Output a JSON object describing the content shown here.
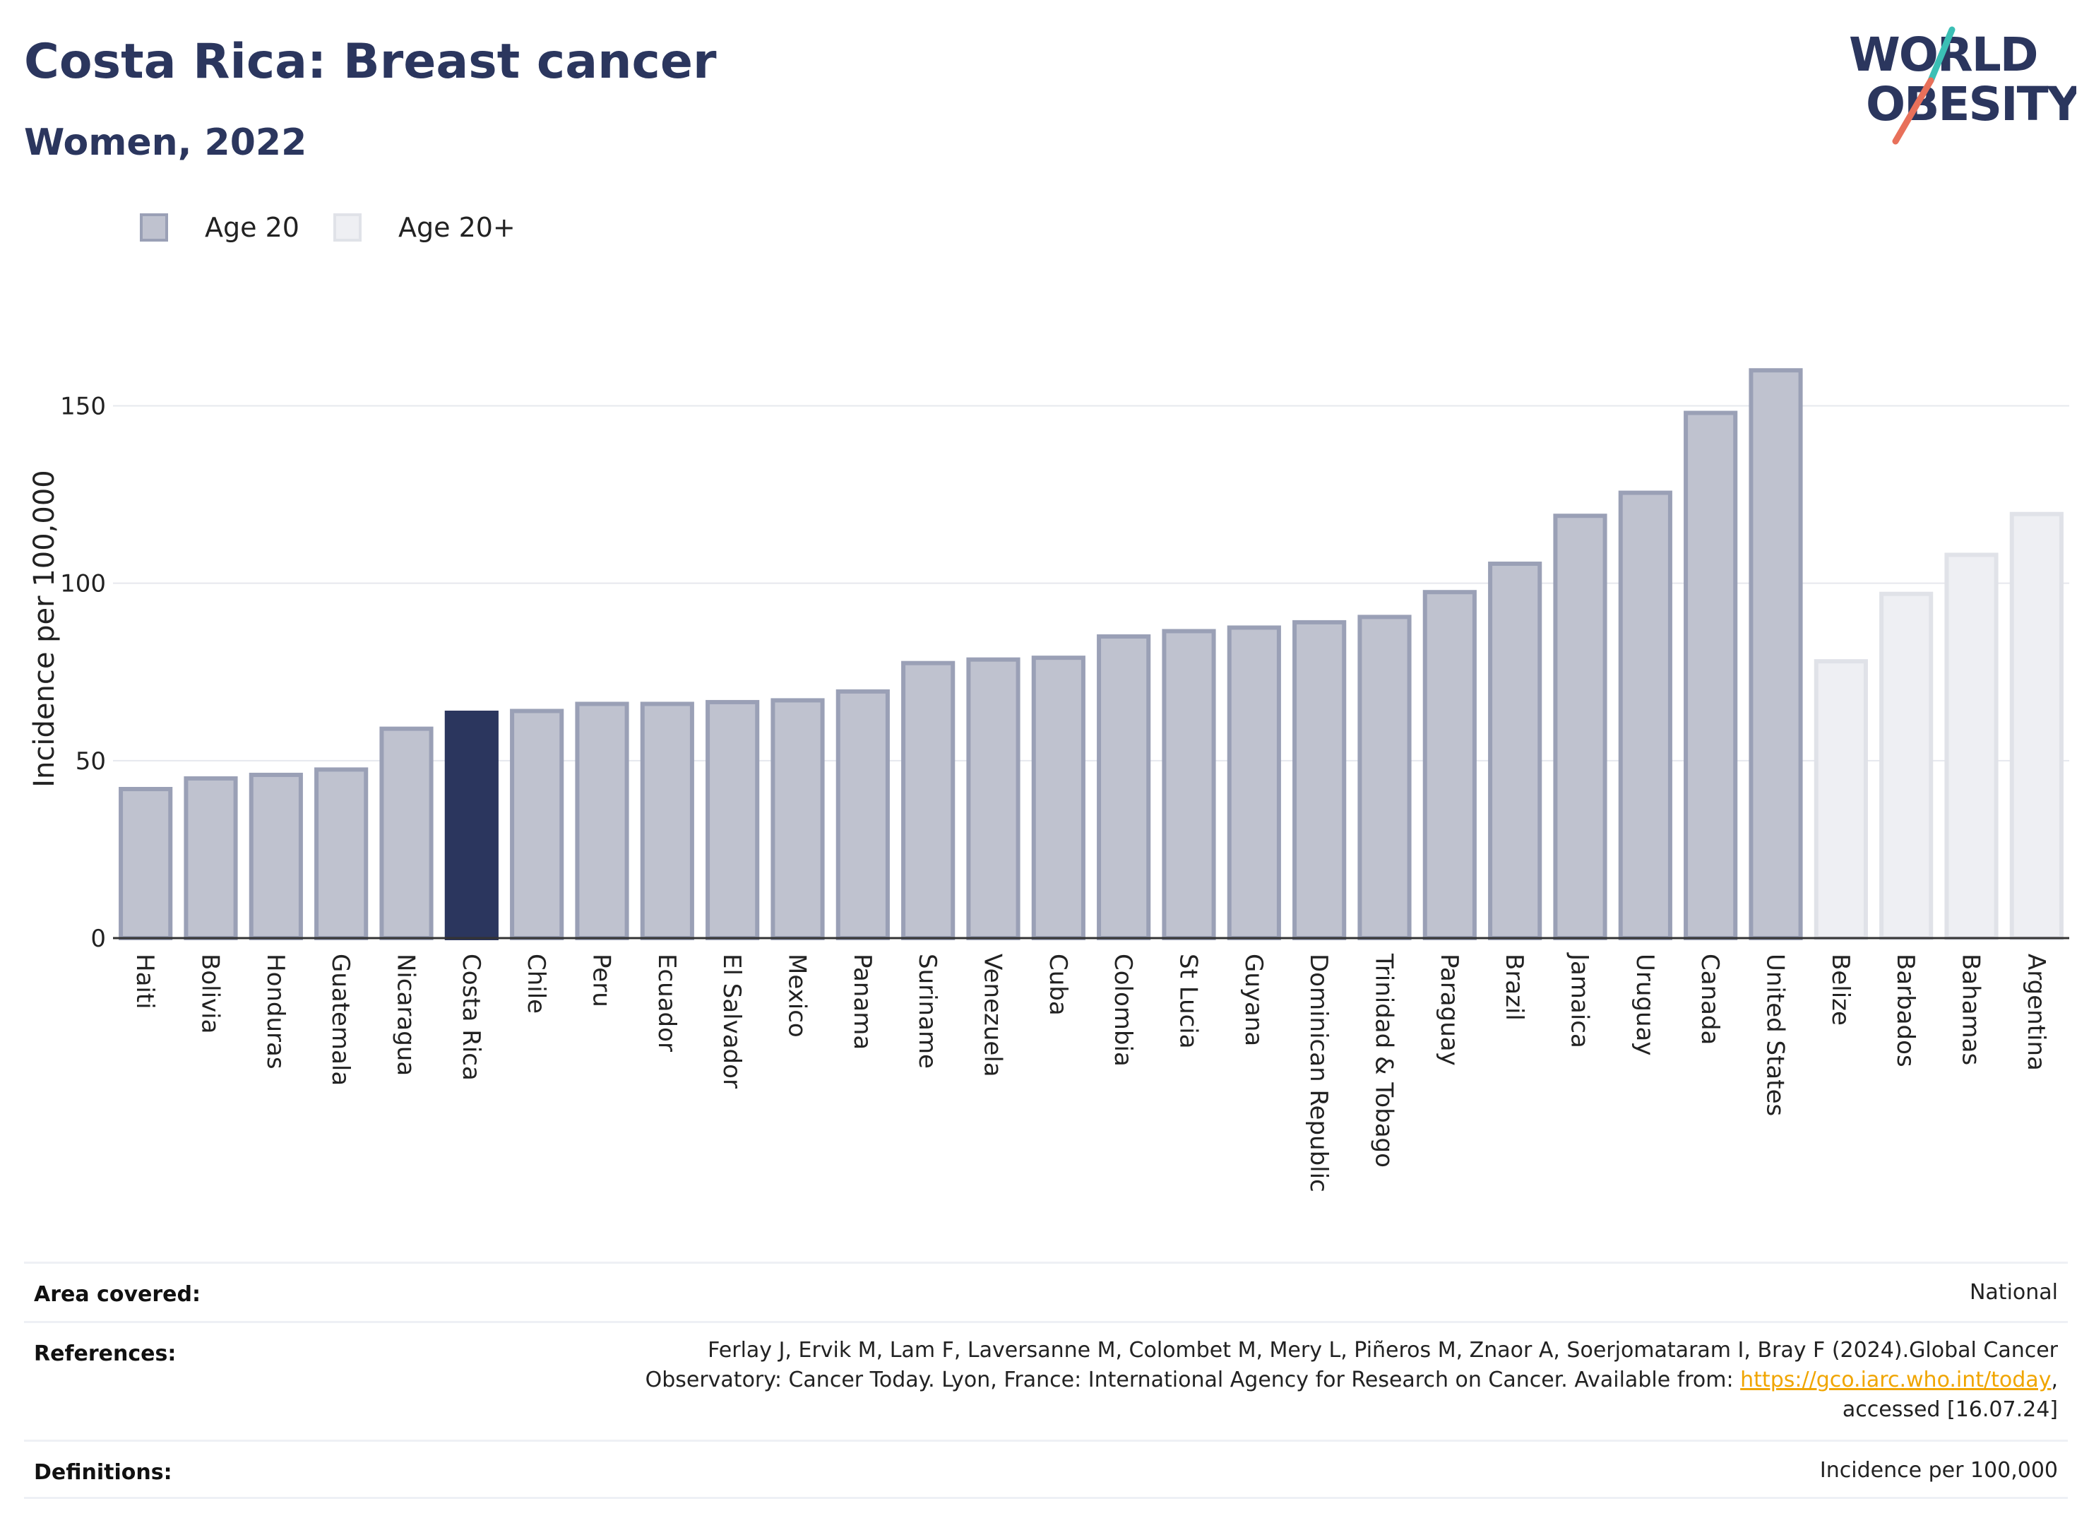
{
  "header": {
    "title": "Costa Rica: Breast cancer",
    "subtitle": "Women, 2022"
  },
  "logo": {
    "line1": "WORLD",
    "line2": "OBESITY"
  },
  "legend": [
    {
      "label": "Age 20",
      "fill": "#bfc2cf",
      "stroke": "#9aa0b6"
    },
    {
      "label": "Age 20+",
      "fill": "#eeeff3",
      "stroke": "#e0e2e8"
    }
  ],
  "colors": {
    "age20_fill": "#bfc2cf",
    "age20_stroke": "#9aa0b6",
    "age20plus_fill": "#eeeff3",
    "age20plus_stroke": "#e0e2e8",
    "highlight": "#2b365e",
    "grid": "#e6e8ee"
  },
  "chart_data": {
    "type": "bar",
    "ylabel": "Incidence per 100,000",
    "ylim": [
      0,
      170
    ],
    "yticks": [
      0,
      50,
      100,
      150
    ],
    "grid": true,
    "legend_position": "top-left",
    "highlight": "Costa Rica",
    "categories": [
      "Haiti",
      "Bolivia",
      "Honduras",
      "Guatemala",
      "Nicaragua",
      "Costa Rica",
      "Chile",
      "Peru",
      "Ecuador",
      "El Salvador",
      "Mexico",
      "Panama",
      "Suriname",
      "Venezuela",
      "Cuba",
      "Colombia",
      "St Lucia",
      "Guyana",
      "Dominican Republic",
      "Trinidad & Tobago",
      "Paraguay",
      "Brazil",
      "Jamaica",
      "Uruguay",
      "Canada",
      "United States",
      "Belize",
      "Barbados",
      "Bahamas",
      "Argentina"
    ],
    "values": [
      42,
      45,
      46,
      47.5,
      59,
      63.5,
      64,
      66,
      66,
      66.5,
      67,
      69.5,
      77.5,
      78.5,
      79,
      85,
      86.5,
      87.5,
      89,
      90.5,
      97.5,
      105.5,
      119,
      125.5,
      148,
      160,
      78,
      97,
      108,
      119.5
    ],
    "series": [
      "Age 20",
      "Age 20",
      "Age 20",
      "Age 20",
      "Age 20",
      "Age 20",
      "Age 20",
      "Age 20",
      "Age 20",
      "Age 20",
      "Age 20",
      "Age 20",
      "Age 20",
      "Age 20",
      "Age 20",
      "Age 20",
      "Age 20",
      "Age 20",
      "Age 20",
      "Age 20",
      "Age 20",
      "Age 20",
      "Age 20",
      "Age 20",
      "Age 20",
      "Age 20",
      "Age 20+",
      "Age 20+",
      "Age 20+",
      "Age 20+"
    ]
  },
  "info": {
    "area_key": "Area covered:",
    "area_val": "National",
    "ref_key": "References:",
    "ref_line1": "Ferlay J, Ervik M, Lam F, Laversanne M, Colombet M, Mery L, Piñeros M, Znaor A, Soerjomataram I, Bray F (2024).Global Cancer",
    "ref_line2": "Observatory: Cancer Today. Lyon, France: International Agency for Research on Cancer. Available from: ",
    "ref_link": "https://gco.iarc.who.int/today",
    "ref_line2_end": ",",
    "ref_line3": "accessed [16.07.24]",
    "def_key": "Definitions:",
    "def_val": "Incidence per 100,000"
  }
}
